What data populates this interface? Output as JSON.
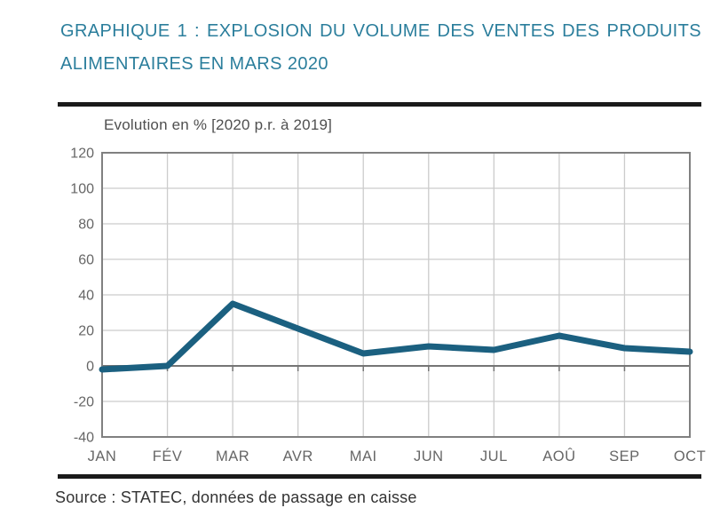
{
  "header": {
    "title_line1": "GRAPHIQUE 1 : EXPLOSION DU VOLUME DES VENTES DES PRODUITS",
    "title_line2": "ALIMENTAIRES EN MARS 2020"
  },
  "footer": {
    "source": "Source : STATEC, données de passage en caisse"
  },
  "chart_data": {
    "type": "line",
    "title": "Evolution en % [2020 p.r. à 2019]",
    "categories": [
      "JAN",
      "FÉV",
      "MAR",
      "AVR",
      "MAI",
      "JUN",
      "JUL",
      "AOÛ",
      "SEP",
      "OCT"
    ],
    "series": [
      {
        "name": "Evolution en % (2020 p.r. à 2019)",
        "values": [
          -2,
          0,
          35,
          21,
          7,
          11,
          9,
          17,
          10,
          8
        ]
      }
    ],
    "xlabel": "",
    "ylabel": "",
    "ylim": [
      -40,
      120
    ],
    "y_ticks": [
      120,
      100,
      80,
      60,
      40,
      20,
      0,
      -20,
      -40
    ],
    "grid": true,
    "legend": "none",
    "line_color": "#1b6080",
    "line_width": 7,
    "colors": {
      "title": "#2b7e9c",
      "subtitle": "#4f4f4f",
      "axis_text": "#666666",
      "grid": "#cccccc",
      "border": "#808080",
      "zero_line": "#757575",
      "rule": "#1a1a1a",
      "source_text": "#333333"
    }
  }
}
